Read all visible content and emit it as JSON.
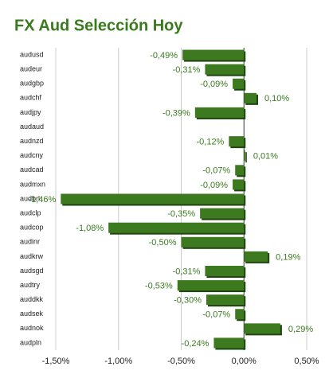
{
  "chart_data": {
    "type": "bar",
    "orientation": "horizontal",
    "title": "FX Aud Selección Hoy",
    "categories": [
      "audusd",
      "audeur",
      "audgbp",
      "audchf",
      "audjpy",
      "audaud",
      "audnzd",
      "audcny",
      "audcad",
      "audmxn",
      "audbrl",
      "audclp",
      "audcop",
      "audinr",
      "audkrw",
      "audsgd",
      "audtry",
      "auddkk",
      "audsek",
      "audnok",
      "audpln"
    ],
    "values": [
      -0.49,
      -0.31,
      -0.09,
      0.1,
      -0.39,
      null,
      -0.12,
      0.01,
      -0.07,
      -0.09,
      -1.46,
      -0.35,
      -1.08,
      -0.5,
      0.19,
      -0.31,
      -0.53,
      -0.3,
      -0.07,
      0.29,
      -0.24
    ],
    "value_labels": [
      "-0,49%",
      "-0,31%",
      "-0,09%",
      "0,10%",
      "-0,39%",
      null,
      "-0,12%",
      "0,01%",
      "-0,07%",
      "-0,09%",
      "-1,46%",
      "-0,35%",
      "-1,08%",
      "-0,50%",
      "0,19%",
      "-0,31%",
      "-0,53%",
      "-0,30%",
      "-0,07%",
      "0,29%",
      "-0,24%"
    ],
    "color": "#3d7a1f",
    "xlim": [
      -1.5,
      0.5
    ],
    "xticks": [
      {
        "value": -1.5,
        "label": "-1,50%"
      },
      {
        "value": -1.0,
        "label": "-1,00%"
      },
      {
        "value": -0.5,
        "label": "-0,50%"
      },
      {
        "value": 0,
        "label": "0,00%"
      },
      {
        "value": 0.5,
        "label": "0,50%"
      }
    ],
    "grid": true
  }
}
